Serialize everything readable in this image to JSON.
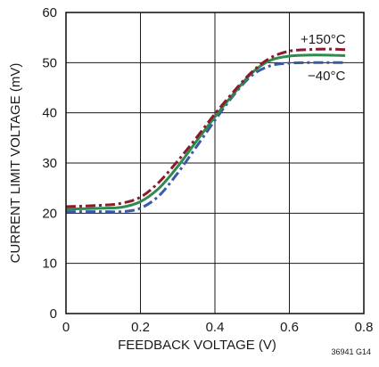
{
  "chart_data": {
    "type": "line",
    "xlabel": "FEEDBACK VOLTAGE (V)",
    "ylabel": "CURRENT LIMIT VOLTAGE (mV)",
    "xlim": [
      0,
      0.8
    ],
    "ylim": [
      0,
      60
    ],
    "xticks": [
      0,
      0.2,
      0.4,
      0.6,
      0.8
    ],
    "xtick_labels": [
      "0",
      "0.2",
      "0.4",
      "0.6",
      "0.8"
    ],
    "yticks": [
      0,
      10,
      20,
      30,
      40,
      50,
      60
    ],
    "ytick_labels": [
      "0",
      "10",
      "20",
      "30",
      "40",
      "50",
      "60"
    ],
    "grid": true,
    "footnote": "36941 G14",
    "series": [
      {
        "name": "+150°C",
        "color": "#8b1a2b",
        "dash": "dash-dot",
        "x": [
          0,
          0.1,
          0.15,
          0.2,
          0.25,
          0.3,
          0.35,
          0.4,
          0.45,
          0.5,
          0.55,
          0.6,
          0.65,
          0.7,
          0.75
        ],
        "y": [
          21.3,
          21.6,
          22.0,
          23.2,
          26.2,
          30.4,
          35.0,
          39.8,
          44.2,
          48.2,
          51.0,
          52.3,
          52.6,
          52.7,
          52.6
        ]
      },
      {
        "name": "",
        "color": "#2e8b4e",
        "dash": "solid",
        "x": [
          0,
          0.1,
          0.15,
          0.2,
          0.25,
          0.3,
          0.35,
          0.4,
          0.45,
          0.5,
          0.55,
          0.6,
          0.65,
          0.7,
          0.75
        ],
        "y": [
          20.8,
          21.0,
          21.2,
          22.3,
          25.0,
          29.3,
          34.3,
          39.2,
          43.8,
          48.0,
          50.5,
          51.3,
          51.5,
          51.5,
          51.4
        ]
      },
      {
        "name": "−40°C",
        "color": "#3a5aa8",
        "dash": "dash-dot",
        "x": [
          0,
          0.1,
          0.15,
          0.2,
          0.25,
          0.3,
          0.35,
          0.4,
          0.45,
          0.5,
          0.55,
          0.6,
          0.65,
          0.7,
          0.75
        ],
        "y": [
          20.3,
          20.3,
          20.3,
          21.0,
          23.5,
          28.0,
          33.2,
          38.5,
          43.5,
          47.5,
          49.4,
          49.9,
          50.0,
          50.0,
          50.0
        ]
      }
    ]
  }
}
